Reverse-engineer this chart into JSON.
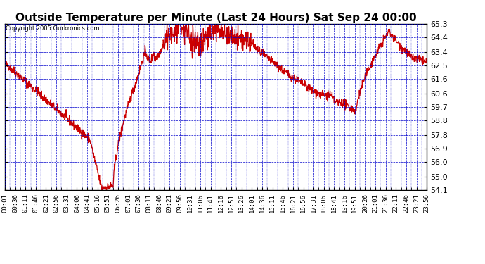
{
  "title": "Outside Temperature per Minute (Last 24 Hours) Sat Sep 24 00:00",
  "copyright": "Copyright 2005 Gurkronics.com",
  "background_color": "#ffffff",
  "plot_background": "#ffffff",
  "line_color": "#cc0000",
  "grid_color": "#0000cc",
  "border_color": "#000000",
  "yticks": [
    54.1,
    55.0,
    56.0,
    56.9,
    57.8,
    58.8,
    59.7,
    60.6,
    61.6,
    62.5,
    63.4,
    64.4,
    65.3
  ],
  "ylim": [
    54.1,
    65.3
  ],
  "xtick_labels": [
    "00:01",
    "00:36",
    "01:11",
    "01:46",
    "02:21",
    "02:56",
    "03:31",
    "04:06",
    "04:41",
    "05:16",
    "05:51",
    "06:26",
    "07:01",
    "07:36",
    "08:11",
    "08:46",
    "09:21",
    "09:56",
    "10:31",
    "11:06",
    "11:41",
    "12:16",
    "12:51",
    "13:26",
    "14:01",
    "14:36",
    "15:11",
    "15:46",
    "16:21",
    "16:56",
    "17:31",
    "18:06",
    "18:41",
    "19:16",
    "19:51",
    "20:26",
    "21:01",
    "21:36",
    "22:11",
    "22:46",
    "23:21",
    "23:56"
  ],
  "title_fontsize": 11,
  "copyright_fontsize": 6,
  "tick_fontsize": 6.5,
  "ytick_fontsize": 8
}
